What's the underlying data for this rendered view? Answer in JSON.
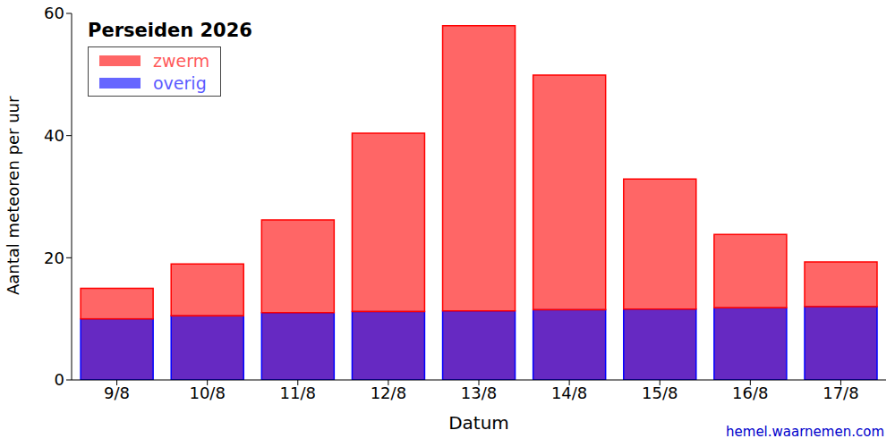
{
  "chart_data": {
    "type": "bar",
    "title": "Perseiden 2026",
    "categories": [
      "9/8",
      "10/8",
      "11/8",
      "12/8",
      "13/8",
      "14/8",
      "15/8",
      "16/8",
      "17/8"
    ],
    "series": [
      {
        "name": "zwerm",
        "color": "#ff0000",
        "values": [
          5,
          8.5,
          15.2,
          29.2,
          46.7,
          38.4,
          21.3,
          12.0,
          7.3
        ]
      },
      {
        "name": "overig",
        "color": "#0000ff",
        "values": [
          10,
          10.5,
          11,
          11.2,
          11.3,
          11.5,
          11.6,
          11.8,
          12.0
        ]
      }
    ],
    "stacked": true,
    "xlabel": "Datum",
    "ylabel": "Aantal meteoren per uur",
    "ylim": [
      0,
      60
    ],
    "yticks": [
      0,
      20,
      40,
      60
    ],
    "legend": "upper left",
    "grid": false,
    "annotation": "hemel.waarnemen.com"
  }
}
